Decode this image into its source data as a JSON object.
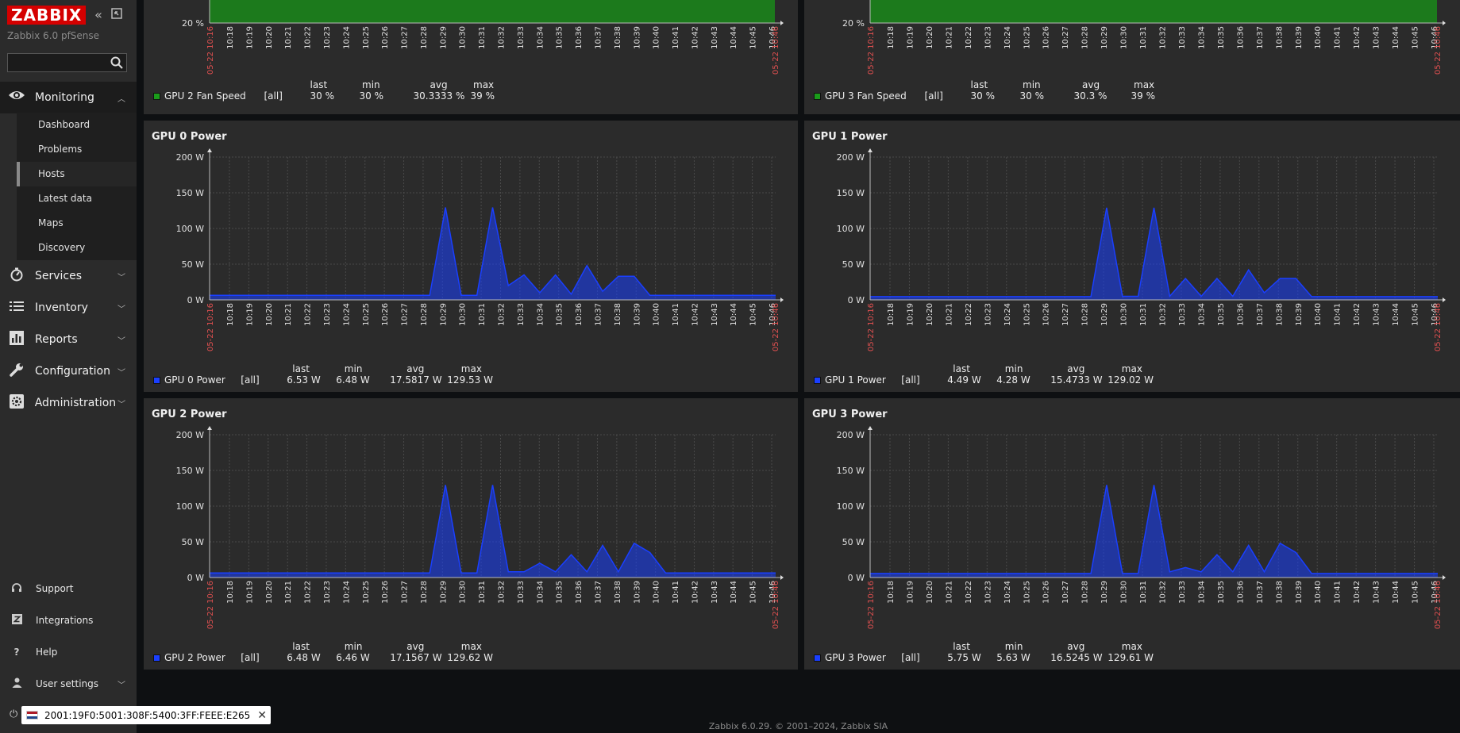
{
  "app": {
    "logo": "ZABBIX",
    "server_name": "Zabbix 6.0 pfSense",
    "footer": "Zabbix 6.0.29. © 2001–2024, Zabbix SIA",
    "toast_text": "2001:19F0:5001:308F:5400:3FF:FEEE:E265"
  },
  "sidebar": {
    "main": [
      {
        "label": "Monitoring",
        "icon": "eye-icon",
        "expanded": true
      },
      {
        "label": "Services",
        "icon": "clock-icon"
      },
      {
        "label": "Inventory",
        "icon": "list-icon"
      },
      {
        "label": "Reports",
        "icon": "bar-chart-icon"
      },
      {
        "label": "Configuration",
        "icon": "wrench-icon"
      },
      {
        "label": "Administration",
        "icon": "gear-icon"
      }
    ],
    "submenu": [
      "Dashboard",
      "Problems",
      "Hosts",
      "Latest data",
      "Maps",
      "Discovery"
    ],
    "bottom": [
      {
        "label": "Support",
        "icon": "headset-icon"
      },
      {
        "label": "Integrations",
        "icon": "integrations-icon"
      },
      {
        "label": "Help",
        "icon": "help-icon"
      },
      {
        "label": "User settings",
        "icon": "user-icon"
      }
    ]
  },
  "x_ticks": [
    "10:18",
    "10:19",
    "10:20",
    "10:21",
    "10:22",
    "10:23",
    "10:24",
    "10:25",
    "10:26",
    "10:27",
    "10:28",
    "10:29",
    "10:30",
    "10:31",
    "10:32",
    "10:33",
    "10:34",
    "10:35",
    "10:36",
    "10:37",
    "10:38",
    "10:39",
    "10:40",
    "10:41",
    "10:42",
    "10:43",
    "10:44",
    "10:45",
    "10:46"
  ],
  "x_start": "05-22 10:16",
  "x_end": "05-22 10:46",
  "legend_headers": {
    "last": "last",
    "min": "min",
    "avg": "avg",
    "max": "max"
  },
  "chart_data": [
    {
      "type": "area",
      "title": "",
      "series": [
        {
          "name": "GPU 2 Fan Speed",
          "scope": "[all]",
          "last": "30 %",
          "min": "30 %",
          "avg": "30.3333 %",
          "max": "39 %",
          "color": "#1a9c1a"
        }
      ],
      "y_ticks": [
        "20 %"
      ]
    },
    {
      "type": "area",
      "title": "",
      "series": [
        {
          "name": "GPU 3 Fan Speed",
          "scope": "[all]",
          "last": "30 %",
          "min": "30 %",
          "avg": "30.3 %",
          "max": "39 %",
          "color": "#1a9c1a"
        }
      ],
      "y_ticks": [
        "20 %"
      ]
    },
    {
      "type": "area",
      "title": "GPU 0 Power",
      "ylim": [
        0,
        200
      ],
      "y_ticks": [
        "200 W",
        "150 W",
        "100 W",
        "50 W",
        "0 W"
      ],
      "series": [
        {
          "name": "GPU 0 Power",
          "scope": "[all]",
          "last": "6.53 W",
          "min": "6.48 W",
          "avg": "17.5817 W",
          "max": "129.53 W",
          "color": "#1a3fff",
          "values": [
            6.5,
            6.5,
            6.5,
            6.5,
            6.5,
            6.5,
            6.5,
            6.5,
            6.5,
            6.5,
            6.5,
            6.5,
            6.5,
            6.5,
            6.5,
            129.5,
            6.5,
            6.5,
            129.5,
            20,
            35,
            10,
            35,
            8,
            48,
            12,
            33,
            33,
            6.5,
            6.5,
            6.5,
            6.5,
            6.5,
            6.5,
            6.5,
            6.5,
            6.5
          ]
        }
      ]
    },
    {
      "type": "area",
      "title": "GPU 1 Power",
      "ylim": [
        0,
        200
      ],
      "y_ticks": [
        "200 W",
        "150 W",
        "100 W",
        "50 W",
        "0 W"
      ],
      "series": [
        {
          "name": "GPU 1 Power",
          "scope": "[all]",
          "last": "4.49 W",
          "min": "4.28 W",
          "avg": "15.4733 W",
          "max": "129.02 W",
          "color": "#1a3fff",
          "values": [
            4.5,
            4.5,
            4.5,
            4.5,
            4.5,
            4.5,
            4.5,
            4.5,
            4.5,
            4.5,
            4.5,
            4.5,
            4.5,
            4.5,
            4.5,
            129,
            5,
            5,
            129,
            5,
            30,
            5,
            30,
            5,
            42,
            10,
            30,
            30,
            4.5,
            4.5,
            4.5,
            4.5,
            4.5,
            4.5,
            4.5,
            4.5,
            4.5
          ]
        }
      ]
    },
    {
      "type": "area",
      "title": "GPU 2 Power",
      "ylim": [
        0,
        200
      ],
      "y_ticks": [
        "200 W",
        "150 W",
        "100 W",
        "50 W",
        "0 W"
      ],
      "series": [
        {
          "name": "GPU 2 Power",
          "scope": "[all]",
          "last": "6.48 W",
          "min": "6.46 W",
          "avg": "17.1567 W",
          "max": "129.62 W",
          "color": "#1a3fff",
          "values": [
            6.5,
            6.5,
            6.5,
            6.5,
            6.5,
            6.5,
            6.5,
            6.5,
            6.5,
            6.5,
            6.5,
            6.5,
            6.5,
            6.5,
            6.5,
            129.6,
            6.5,
            6.5,
            129.6,
            8,
            8,
            20,
            8,
            32,
            8,
            45,
            8,
            48,
            35,
            6.5,
            6.5,
            6.5,
            6.5,
            6.5,
            6.5,
            6.5,
            6.5
          ]
        }
      ]
    },
    {
      "type": "area",
      "title": "GPU 3 Power",
      "ylim": [
        0,
        200
      ],
      "y_ticks": [
        "200 W",
        "150 W",
        "100 W",
        "50 W",
        "0 W"
      ],
      "series": [
        {
          "name": "GPU 3 Power",
          "scope": "[all]",
          "last": "5.75 W",
          "min": "5.63 W",
          "avg": "16.5245 W",
          "max": "129.61 W",
          "color": "#1a3fff",
          "values": [
            5.7,
            5.7,
            5.7,
            5.7,
            5.7,
            5.7,
            5.7,
            5.7,
            5.7,
            5.7,
            5.7,
            5.7,
            5.7,
            5.7,
            5.7,
            129.6,
            5.7,
            5.7,
            129.6,
            8,
            14,
            8,
            32,
            8,
            45,
            8,
            48,
            35,
            5.7,
            5.7,
            5.7,
            5.7,
            5.7,
            5.7,
            5.7,
            5.7,
            5.7
          ]
        }
      ]
    }
  ]
}
